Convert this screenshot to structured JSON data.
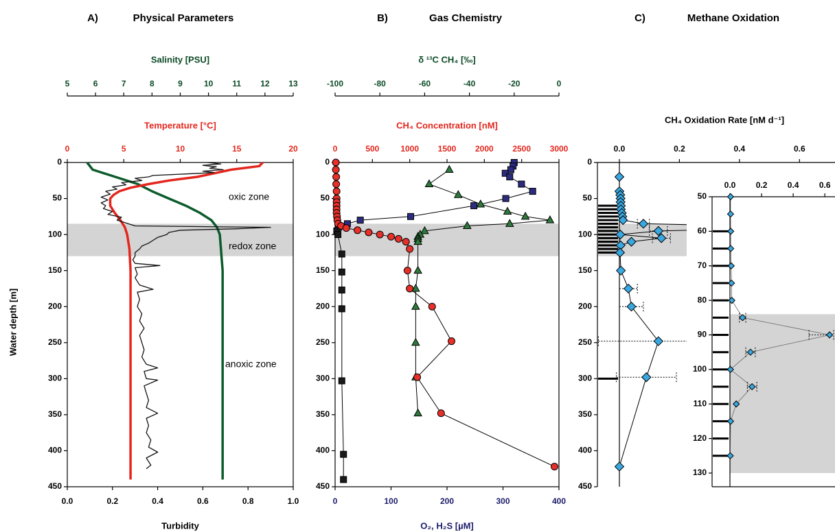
{
  "chart_data": [
    {
      "type": "line",
      "panel": "A)",
      "title": "Physical Parameters",
      "ylabel": "Water depth [m]",
      "ylim": [
        0,
        450
      ],
      "yticks": [
        0,
        50,
        100,
        150,
        200,
        250,
        300,
        350,
        400,
        450
      ],
      "x_axes": [
        {
          "label": "Turbidity",
          "position": "bottom",
          "color": "#000000",
          "xlim": [
            0,
            1
          ],
          "xticks": [
            {
              "value": 0,
              "label": "0.0"
            },
            {
              "value": 0.2,
              "label": "0.2"
            },
            {
              "value": 0.4,
              "label": "0.4"
            },
            {
              "value": 0.6,
              "label": "0.6"
            },
            {
              "value": 0.8,
              "label": "0.8"
            },
            {
              "value": 1,
              "label": "1.0"
            }
          ]
        },
        {
          "label": "Temperature [°C]",
          "position": "top",
          "color": "#e3261d",
          "xlim": [
            0,
            20
          ],
          "xticks": [
            0,
            5,
            10,
            15,
            20
          ]
        },
        {
          "label": "Salinity [PSU]",
          "position": "top2",
          "color": "#0c4a26",
          "xlim": [
            5,
            13
          ],
          "xticks": [
            5,
            6,
            7,
            8,
            9,
            10,
            11,
            12,
            13
          ]
        }
      ],
      "shaded_depth": [
        85,
        130
      ],
      "annotations": [
        "oxic zone",
        "redox zone",
        "anoxic zone"
      ],
      "series": [
        {
          "axis": 2,
          "color": "#0b5b2b",
          "depth": [
            0,
            10,
            20,
            30,
            40,
            50,
            60,
            70,
            80,
            90,
            100,
            150,
            440
          ],
          "values": [
            5.7,
            5.9,
            6.7,
            7.5,
            8.0,
            8.6,
            9.2,
            9.7,
            10.1,
            10.3,
            10.4,
            10.5,
            10.5
          ]
        },
        {
          "axis": 1,
          "color": "#e3261d",
          "depth": [
            0,
            5,
            10,
            15,
            20,
            25,
            30,
            35,
            40,
            45,
            50,
            60,
            70,
            80,
            90,
            100,
            120,
            150,
            200,
            300,
            400,
            440
          ],
          "values": [
            17.3,
            17.0,
            14.5,
            13.0,
            11.5,
            9.0,
            7.2,
            5.6,
            4.6,
            4.1,
            3.8,
            3.8,
            4.2,
            4.7,
            5.1,
            5.3,
            5.5,
            5.6,
            5.6,
            5.6,
            5.6,
            5.6
          ]
        },
        {
          "axis": 0,
          "color": "#111111",
          "depth": [
            0,
            2,
            4,
            6,
            8,
            10,
            12,
            14,
            16,
            18,
            20,
            22,
            25,
            28,
            31,
            34,
            37,
            40,
            44,
            48,
            52,
            56,
            60,
            64,
            68,
            72,
            76,
            80,
            84,
            88,
            90,
            92,
            94,
            97,
            100,
            104,
            108,
            112,
            116,
            120,
            125,
            130,
            135,
            140,
            143,
            146,
            155,
            160,
            170,
            176,
            180,
            190,
            200,
            210,
            220,
            230,
            240,
            250,
            260,
            270,
            280,
            285,
            290,
            300,
            302,
            310,
            320,
            330,
            340,
            348,
            355,
            365,
            375,
            385,
            395,
            402,
            410,
            420,
            425
          ],
          "values": [
            0.62,
            0.68,
            0.6,
            0.66,
            0.63,
            0.69,
            0.6,
            0.65,
            0.52,
            0.38,
            0.36,
            0.3,
            0.33,
            0.24,
            0.26,
            0.2,
            0.22,
            0.17,
            0.19,
            0.15,
            0.18,
            0.15,
            0.17,
            0.16,
            0.2,
            0.18,
            0.24,
            0.22,
            0.26,
            0.3,
            0.9,
            0.75,
            0.5,
            0.45,
            0.44,
            0.4,
            0.38,
            0.36,
            0.33,
            0.32,
            0.3,
            0.3,
            0.29,
            0.3,
            0.41,
            0.3,
            0.31,
            0.3,
            0.32,
            0.38,
            0.31,
            0.32,
            0.31,
            0.33,
            0.32,
            0.34,
            0.32,
            0.33,
            0.34,
            0.33,
            0.35,
            0.4,
            0.34,
            0.35,
            0.4,
            0.34,
            0.35,
            0.36,
            0.35,
            0.4,
            0.35,
            0.36,
            0.35,
            0.37,
            0.36,
            0.4,
            0.35,
            0.37,
            0.35
          ]
        }
      ]
    },
    {
      "type": "line",
      "panel": "B)",
      "title": "Gas Chemistry",
      "ylim": [
        0,
        450
      ],
      "yticks": [
        0,
        50,
        100,
        150,
        200,
        250,
        300,
        350,
        400,
        450
      ],
      "x_axes": [
        {
          "label": "O₂, H₂S [µM]",
          "position": "bottom",
          "color": "#1c1c6b",
          "xlim": [
            0,
            400
          ],
          "xticks": [
            0,
            100,
            200,
            300,
            400
          ]
        },
        {
          "label": "CH₄ Concentration [nM]",
          "position": "top",
          "color": "#e3261d",
          "xlim": [
            0,
            3000
          ],
          "xticks": [
            0,
            500,
            1000,
            1500,
            2000,
            2500,
            3000
          ]
        },
        {
          "label": "δ ¹³C CH₄  [‰]",
          "position": "top2",
          "color": "#0c4a26",
          "xlim": [
            -100,
            0
          ],
          "xticks": [
            -100,
            -80,
            -60,
            -40,
            -20,
            0
          ]
        }
      ],
      "shaded_depth": [
        85,
        130
      ],
      "series": [
        {
          "axis": 0,
          "marker": "square",
          "color": "#2b2b80",
          "depth": [
            0,
            5,
            10,
            15,
            20,
            30,
            40,
            50,
            60,
            75,
            80,
            85,
            90
          ],
          "values": [
            320,
            318,
            314,
            304,
            312,
            333,
            353,
            305,
            248,
            135,
            45,
            22,
            6
          ]
        },
        {
          "axis": 0,
          "marker": "square",
          "color": "#1a1a1a",
          "depth": [
            95,
            100,
            127,
            152,
            177,
            203,
            303,
            405,
            440
          ],
          "values": [
            3,
            5,
            12,
            12,
            12,
            12,
            12,
            15,
            15
          ]
        },
        {
          "axis": 2,
          "marker": "triangle",
          "color": "#2d7a3b",
          "depth": [
            10,
            30,
            45,
            58,
            68,
            75,
            80,
            85,
            88,
            95,
            100,
            103,
            106,
            110,
            150,
            175,
            200,
            250,
            298,
            348
          ],
          "values": [
            -49,
            -58,
            -45,
            -35,
            -23,
            -15,
            -4,
            -22,
            -41,
            -60,
            -62,
            -63,
            -63,
            -63,
            -63,
            -64,
            -64,
            -64,
            -64,
            -63
          ]
        },
        {
          "axis": 1,
          "marker": "circle",
          "color": "#e8302a",
          "depth": [
            0,
            10,
            20,
            30,
            40,
            50,
            55,
            60,
            65,
            70,
            75,
            80,
            85,
            88,
            91,
            94,
            97,
            100,
            103,
            106,
            110,
            120,
            150,
            175,
            200,
            248,
            298,
            348,
            422
          ],
          "values": [
            10,
            10,
            15,
            15,
            20,
            20,
            20,
            20,
            20,
            20,
            25,
            30,
            40,
            80,
            150,
            300,
            450,
            600,
            750,
            850,
            950,
            1000,
            970,
            1000,
            1300,
            1560,
            1100,
            1420,
            2940
          ]
        }
      ]
    },
    {
      "type": "scatter",
      "panel": "C)",
      "title": "Methane Oxidation",
      "ylim": [
        0,
        450
      ],
      "yticks": [
        0,
        50,
        100,
        150,
        200,
        250,
        300,
        350,
        400,
        450
      ],
      "x_axes": [
        {
          "label": "CH₄ Oxidation Rate [nM d⁻¹]",
          "position": "top",
          "color": "#000000",
          "xlim": [
            0,
            0.7
          ],
          "xticks": [
            {
              "value": 0,
              "label": "0.0"
            },
            {
              "value": 0.2,
              "label": "0.2"
            },
            {
              "value": 0.4,
              "label": "0.4"
            },
            {
              "value": 0.6,
              "label": "0.6"
            }
          ]
        }
      ],
      "shaded_depth": [
        85,
        130
      ],
      "sample_depths": [
        60,
        65,
        70,
        75,
        80,
        85,
        90,
        95,
        100,
        105,
        110,
        115,
        120,
        125,
        300
      ],
      "series": [
        {
          "axis": 0,
          "marker": "diamond",
          "color": "#3aa8e0",
          "depth": [
            20,
            40,
            45,
            50,
            55,
            60,
            65,
            70,
            75,
            80,
            85,
            90,
            95,
            100,
            105,
            110,
            115,
            125,
            150,
            175,
            200,
            248,
            298,
            422
          ],
          "values": [
            0,
            0,
            0.003,
            0.004,
            0.004,
            0.005,
            0.005,
            0.008,
            0.01,
            0.012,
            0.08,
            0.63,
            0.13,
            0.003,
            0.14,
            0.04,
            0.004,
            0.002,
            0.005,
            0.03,
            0.04,
            0.13,
            0.09,
            0
          ],
          "errors": [
            null,
            null,
            null,
            null,
            null,
            null,
            null,
            null,
            null,
            null,
            0.02,
            0.13,
            0.03,
            null,
            0.03,
            null,
            null,
            null,
            null,
            0.03,
            0.04,
            0.2,
            0.1,
            null
          ]
        }
      ]
    },
    {
      "type": "scatter",
      "inset": true,
      "ylim": [
        50,
        130
      ],
      "yticks": [
        50,
        60,
        70,
        80,
        90,
        100,
        110,
        120,
        130
      ],
      "x_axes": [
        {
          "position": "top",
          "color": "#000000",
          "xlim": [
            0,
            0.66
          ],
          "xticks": [
            {
              "value": 0,
              "label": "0.0"
            },
            {
              "value": 0.2,
              "label": "0.2"
            },
            {
              "value": 0.4,
              "label": "0.4"
            },
            {
              "value": 0.6,
              "label": "0.6"
            }
          ]
        }
      ],
      "shaded_depth": [
        84,
        130
      ]
    }
  ]
}
